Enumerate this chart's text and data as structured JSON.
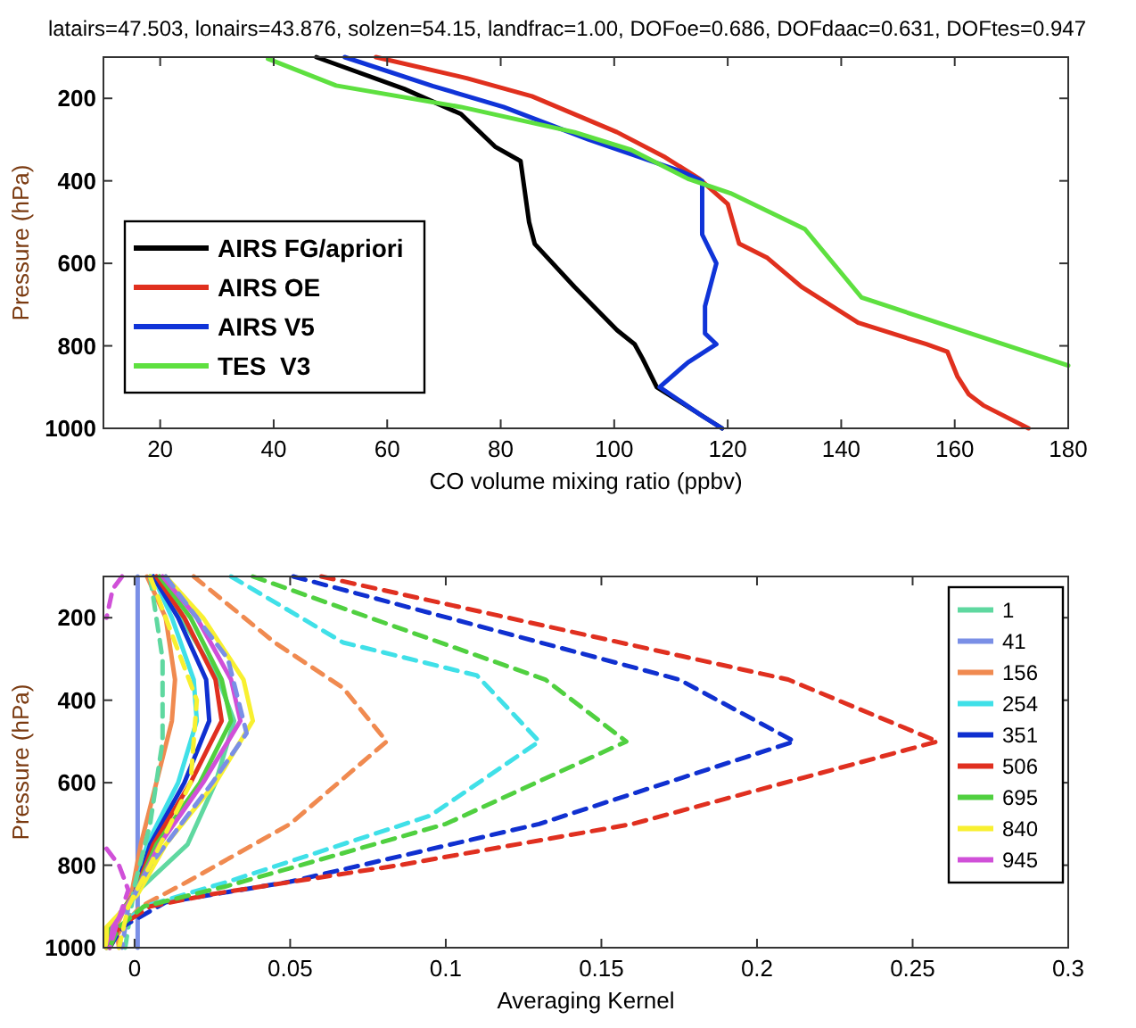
{
  "chart_data": [
    {
      "type": "line",
      "title": "latairs=47.503,  lonairs=43.876, solzen=54.15, landfrac=1.00, DOFoe=0.686,  DOFdaac=0.631, DOFtes=0.947",
      "xlabel": "CO volume mixing ratio (ppbv)",
      "ylabel": "Pressure (hPa)",
      "xlim": [
        10,
        180
      ],
      "xticks": [
        20,
        40,
        60,
        80,
        100,
        120,
        140,
        160,
        180
      ],
      "ylim": [
        1000,
        100
      ],
      "yticks": [
        200,
        400,
        600,
        800,
        1000
      ],
      "grid": false,
      "legend": "bottom left",
      "line_style": "solid",
      "series": [
        {
          "name": "AIRS FG/apriori",
          "color": "#000000",
          "x": [
            47.5,
            63,
            73,
            79,
            83.5,
            85,
            86,
            93,
            100.5,
            103.6,
            105,
            107.5,
            119
          ],
          "values": [
            100,
            177,
            238,
            317,
            352,
            500,
            553,
            657,
            762,
            796,
            831,
            900,
            1000
          ]
        },
        {
          "name": "AIRS OE",
          "color": "#e0301e",
          "x": [
            58,
            74,
            85.5,
            100.5,
            109,
            115,
            120,
            122,
            127,
            133,
            143,
            155,
            158.7,
            160.5,
            162.5,
            165,
            173
          ],
          "values": [
            100,
            151,
            195,
            282,
            343,
            395,
            456,
            552,
            587,
            657,
            744,
            796,
            814,
            875,
            918,
            944,
            1000
          ]
        },
        {
          "name": "AIRS V5",
          "color": "#1034d8",
          "x": [
            52.5,
            68,
            80.5,
            95.5,
            112,
            115.5,
            115.5,
            118,
            116,
            116,
            118,
            113,
            108,
            115.5,
            119
          ],
          "values": [
            100,
            170,
            221,
            300,
            378,
            400,
            530,
            600,
            704,
            770,
            796,
            840,
            900,
            970,
            1000
          ]
        },
        {
          "name": "TES  V3",
          "color": "#5ee040",
          "x": [
            39,
            51,
            73,
            93,
            103,
            113,
            120.5,
            133.6,
            143.6,
            180
          ],
          "values": [
            104,
            169,
            221,
            282,
            325,
            395,
            430,
            517,
            683,
            848
          ]
        }
      ]
    },
    {
      "type": "line",
      "xlabel": "Averaging Kernel",
      "ylabel": "Pressure (hPa)",
      "xlim": [
        -0.01,
        0.3
      ],
      "xticks": [
        0,
        0.05,
        0.1,
        0.15,
        0.2,
        0.25,
        0.3
      ],
      "ylim": [
        1000,
        100
      ],
      "yticks": [
        200,
        400,
        600,
        800,
        1000
      ],
      "grid": false,
      "legend": "top right",
      "line_style": "solid",
      "series": [
        {
          "name": "1",
          "color": "#5fd8a0",
          "x": [
            0.005,
            0.015,
            0.027,
            0.032,
            0.026,
            0.017,
            0.0,
            -0.007,
            -0.008
          ],
          "values": [
            100,
            200,
            350,
            450,
            600,
            750,
            870,
            950,
            1000
          ]
        },
        {
          "name": "41",
          "color": "#7a8fe6",
          "x": [
            0.001,
            0.001,
            0.001,
            0.001
          ],
          "values": [
            100,
            500,
            900,
            1000
          ]
        },
        {
          "name": "156",
          "color": "#f08a50",
          "x": [
            0.004,
            0.01,
            0.013,
            0.012,
            0.007,
            0.002,
            -0.001,
            -0.006,
            -0.005
          ],
          "values": [
            100,
            200,
            350,
            450,
            600,
            750,
            870,
            950,
            1000
          ]
        },
        {
          "name": "254",
          "color": "#40e0e8",
          "x": [
            0.006,
            0.012,
            0.019,
            0.02,
            0.014,
            0.004,
            0,
            -0.007,
            -0.008
          ],
          "values": [
            100,
            200,
            350,
            450,
            600,
            750,
            870,
            950,
            1000
          ]
        },
        {
          "name": "351",
          "color": "#1030d0",
          "x": [
            0.006,
            0.014,
            0.023,
            0.024,
            0.016,
            0.005,
            0,
            -0.008,
            -0.009
          ],
          "values": [
            100,
            200,
            350,
            450,
            600,
            750,
            870,
            950,
            1000
          ]
        },
        {
          "name": "506",
          "color": "#e03020",
          "x": [
            0.007,
            0.016,
            0.026,
            0.028,
            0.018,
            0.006,
            0,
            -0.008,
            -0.009
          ],
          "values": [
            100,
            200,
            350,
            450,
            600,
            750,
            870,
            950,
            1000
          ]
        },
        {
          "name": "695",
          "color": "#50d040",
          "x": [
            0.008,
            0.018,
            0.028,
            0.031,
            0.021,
            0.007,
            0,
            -0.008,
            -0.009
          ],
          "values": [
            100,
            200,
            350,
            450,
            600,
            750,
            870,
            950,
            1000
          ]
        },
        {
          "name": "840",
          "color": "#f8f030",
          "x": [
            0.01,
            0.022,
            0.035,
            0.038,
            0.026,
            0.01,
            0.001,
            -0.009,
            -0.009
          ],
          "values": [
            100,
            200,
            350,
            450,
            600,
            750,
            870,
            950,
            1000
          ]
        },
        {
          "name": "945",
          "color": "#d050d8",
          "x": [
            0.009,
            0.02,
            0.031,
            0.034,
            0.022,
            0.008,
            0,
            -0.007,
            -0.008
          ],
          "values": [
            100,
            200,
            350,
            450,
            600,
            750,
            870,
            950,
            1000
          ]
        },
        {
          "color": "#5fd8a0",
          "line_style": "dashed",
          "x": [
            0.005,
            0.009,
            0.009,
            0.005,
            0.0,
            -0.003
          ],
          "values": [
            100,
            300,
            500,
            700,
            850,
            1000
          ]
        },
        {
          "color": "#7a8fe6",
          "line_style": "dashed",
          "x": [
            0.01,
            0.03,
            0.036,
            0.025,
            0.005,
            -0.002,
            -0.004
          ],
          "values": [
            100,
            300,
            480,
            600,
            800,
            900,
            1000
          ]
        },
        {
          "color": "#f08a50",
          "line_style": "dashed",
          "x": [
            0.019,
            0.045,
            0.067,
            0.081,
            0.05,
            0.017,
            0.002,
            -0.004,
            -0.008
          ],
          "values": [
            100,
            260,
            370,
            500,
            700,
            840,
            900,
            950,
            1000
          ]
        },
        {
          "color": "#40e0e8",
          "line_style": "dashed",
          "x": [
            0.031,
            0.067,
            0.11,
            0.13,
            0.095,
            0.03,
            0.003,
            -0.005,
            -0.008
          ],
          "values": [
            100,
            260,
            340,
            500,
            680,
            840,
            900,
            950,
            1000
          ]
        },
        {
          "color": "#1030d0",
          "line_style": "dashed",
          "x": [
            0.051,
            0.175,
            0.212,
            0.13,
            0.05,
            0.01,
            -0.004,
            -0.008
          ],
          "values": [
            100,
            350,
            500,
            700,
            840,
            890,
            950,
            1000
          ]
        },
        {
          "color": "#e03020",
          "line_style": "dashed",
          "x": [
            0.06,
            0.21,
            0.258,
            0.16,
            0.085,
            0.025,
            0.005,
            -0.005,
            -0.008
          ],
          "values": [
            100,
            350,
            500,
            700,
            800,
            870,
            900,
            950,
            1000
          ]
        },
        {
          "color": "#50d040",
          "line_style": "dashed",
          "x": [
            0.038,
            0.132,
            0.158,
            0.1,
            0.03,
            0.003,
            -0.005,
            -0.008
          ],
          "values": [
            100,
            350,
            500,
            700,
            850,
            900,
            950,
            1000
          ]
        },
        {
          "color": "#f8f030",
          "line_style": "dashed",
          "x": [
            0.005,
            0.02,
            0.018,
            0.005,
            -0.002,
            -0.005
          ],
          "values": [
            100,
            400,
            600,
            800,
            900,
            1000
          ]
        },
        {
          "color": "#d050d8",
          "line_style": "dashed",
          "x": [
            -0.004,
            -0.007,
            -0.009,
            null,
            -0.009,
            -0.005,
            -0.002,
            -0.006,
            -0.008
          ],
          "values": [
            100,
            130,
            200,
            null,
            760,
            800,
            860,
            950,
            1000
          ]
        }
      ]
    }
  ]
}
